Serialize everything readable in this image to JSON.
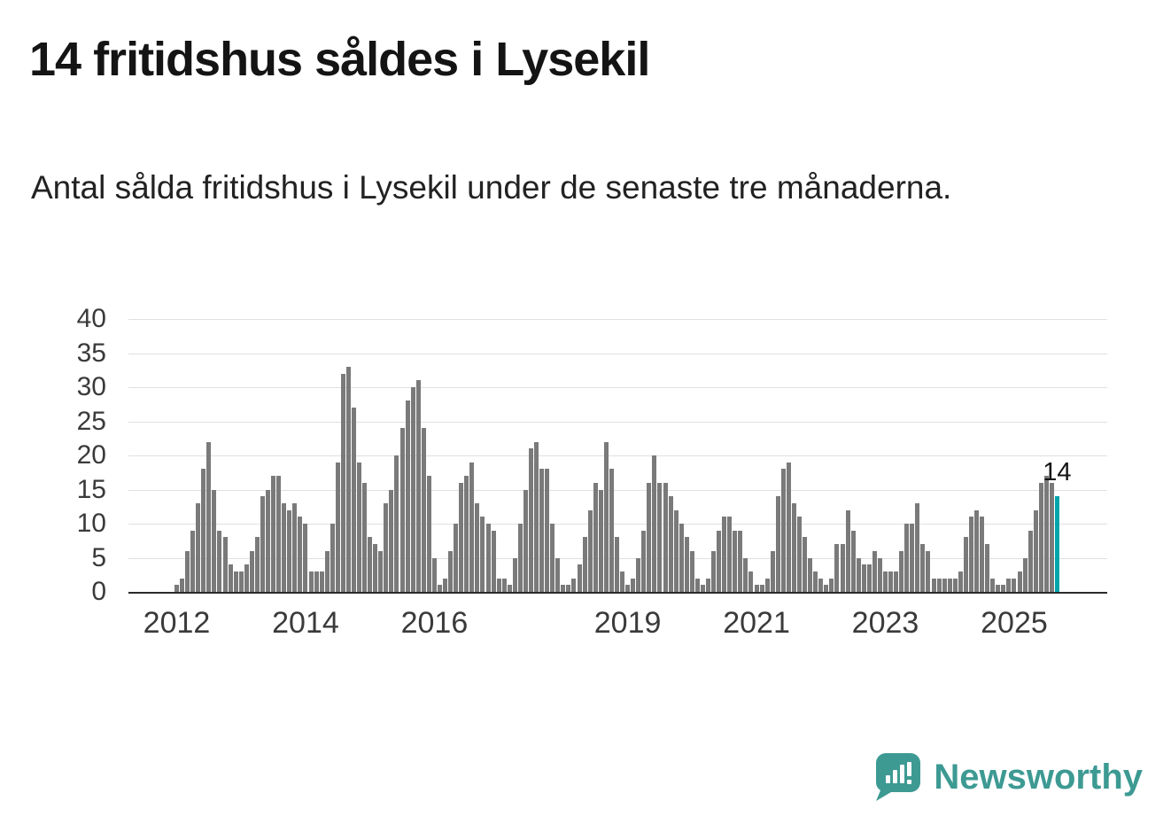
{
  "header": {
    "title": "14 fritidshus såldes i Lysekil",
    "subtitle": "Antal sålda fritidshus i Lysekil under de senaste tre månaderna."
  },
  "chart_data": {
    "type": "bar",
    "title": "14 fritidshus såldes i Lysekil",
    "description": "Antal sålda fritidshus i Lysekil under de senaste tre månaderna.",
    "frequency": "monthly",
    "x_start": "2012-01",
    "x_end": "2025-09",
    "ylim": [
      0,
      40
    ],
    "yticks": [
      0,
      5,
      10,
      15,
      20,
      25,
      30,
      35,
      40
    ],
    "grid": true,
    "bar_color": "#7a7a7a",
    "highlight_color": "#00a5ab",
    "annotation": "14",
    "xticks": [
      {
        "label": "2012",
        "index": 0
      },
      {
        "label": "2014",
        "index": 24
      },
      {
        "label": "2016",
        "index": 48
      },
      {
        "label": "2019",
        "index": 84
      },
      {
        "label": "2021",
        "index": 108
      },
      {
        "label": "2023",
        "index": 132
      },
      {
        "label": "2025",
        "index": 156
      }
    ],
    "values": [
      1,
      2,
      6,
      9,
      13,
      18,
      22,
      15,
      9,
      8,
      4,
      3,
      3,
      4,
      6,
      8,
      14,
      15,
      17,
      17,
      13,
      12,
      13,
      11,
      10,
      3,
      3,
      3,
      6,
      10,
      19,
      32,
      33,
      27,
      19,
      16,
      8,
      7,
      6,
      13,
      15,
      20,
      24,
      28,
      30,
      31,
      24,
      17,
      5,
      1,
      2,
      6,
      10,
      16,
      17,
      19,
      13,
      11,
      10,
      9,
      2,
      2,
      1,
      5,
      10,
      15,
      21,
      22,
      18,
      18,
      10,
      5,
      1,
      1,
      2,
      4,
      8,
      12,
      16,
      15,
      22,
      18,
      8,
      3,
      1,
      2,
      5,
      9,
      16,
      20,
      16,
      16,
      14,
      12,
      10,
      8,
      6,
      2,
      1,
      2,
      6,
      9,
      11,
      11,
      9,
      9,
      5,
      3,
      1,
      1,
      2,
      6,
      14,
      18,
      19,
      13,
      11,
      8,
      5,
      3,
      2,
      1,
      2,
      7,
      7,
      12,
      9,
      5,
      4,
      4,
      6,
      5,
      3,
      3,
      3,
      6,
      10,
      10,
      13,
      7,
      6,
      2,
      2,
      2,
      2,
      2,
      3,
      8,
      11,
      12,
      11,
      7,
      2,
      1,
      1,
      2,
      2,
      3,
      5,
      9,
      12,
      16,
      17,
      16,
      14
    ]
  },
  "footer": {
    "brand": "Newsworthy",
    "brand_color": "#3d9a93"
  }
}
